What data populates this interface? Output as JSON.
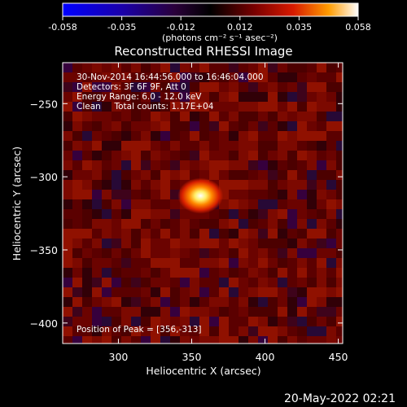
{
  "chart_data": {
    "type": "heatmap",
    "title": "Reconstructed RHESSI Image",
    "xlabel": "Heliocentric X (arcsec)",
    "ylabel": "Heliocentric Y (arcsec)",
    "xlim": [
      262,
      453
    ],
    "ylim": [
      -414,
      -222
    ],
    "xticks": [
      300,
      350,
      400,
      450
    ],
    "yticks": [
      -250,
      -300,
      -350,
      -400
    ],
    "colorbar": {
      "min": -0.058,
      "max": 0.058,
      "ticks": [
        "-0.058",
        "-0.035",
        "-0.012",
        "0.012",
        "0.035",
        "0.058"
      ],
      "label": "(photons cm⁻² s⁻¹ asec⁻²)",
      "colormap": "rainbow-black-blue-red-yellow-white"
    },
    "annotations": [
      "30-Nov-2014 16:44:56.000 to 16:46:04.000",
      "Detectors: 3F 6F 9F, Att 0",
      "Energy Range: 6.0 - 12.0 keV",
      "Clean     Total counts: 1.17E+04"
    ],
    "peak_label": "Position of Peak = [356,-313]",
    "peak": {
      "x": 356,
      "y": -313,
      "value": 0.058
    },
    "background_level": 0.012
  },
  "footer": {
    "date": "20-May-2022 02:21"
  }
}
